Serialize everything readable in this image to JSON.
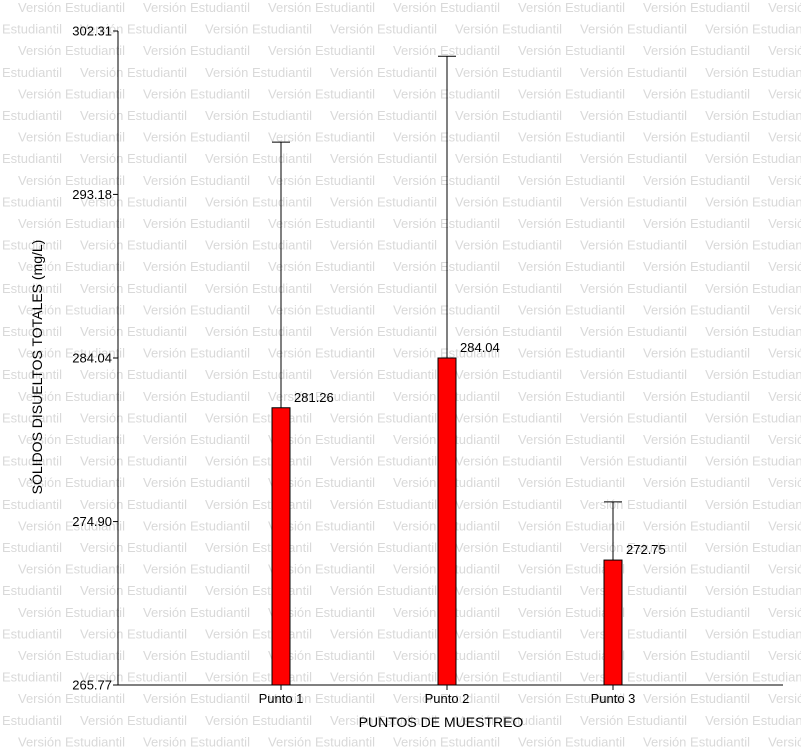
{
  "watermark": {
    "text": "Versión Estudiantil"
  },
  "colors": {
    "bar": "#ff0000",
    "bar_stroke": "#000000",
    "axis": "#000000",
    "watermark": "#d9d9d9"
  },
  "chart_data": {
    "type": "bar",
    "title": "",
    "xlabel": "PUNTOS DE MUESTREO",
    "ylabel": "SÓLIDOS DISUELTOS TOTALES (mg/L)",
    "categories": [
      "Punto 1",
      "Punto 2",
      "Punto 3"
    ],
    "values": [
      281.26,
      284.04,
      272.75
    ],
    "value_labels": [
      "281.26",
      "284.04",
      "272.75"
    ],
    "error_upper": [
      296.1,
      300.9,
      276.0
    ],
    "ylim": [
      265.77,
      302.31
    ],
    "yticks": [
      265.77,
      274.9,
      284.04,
      293.18,
      302.31
    ],
    "ytick_labels": [
      "265.77",
      "274.90",
      "284.04",
      "293.18",
      "302.31"
    ],
    "grid": false,
    "legend": "none"
  }
}
